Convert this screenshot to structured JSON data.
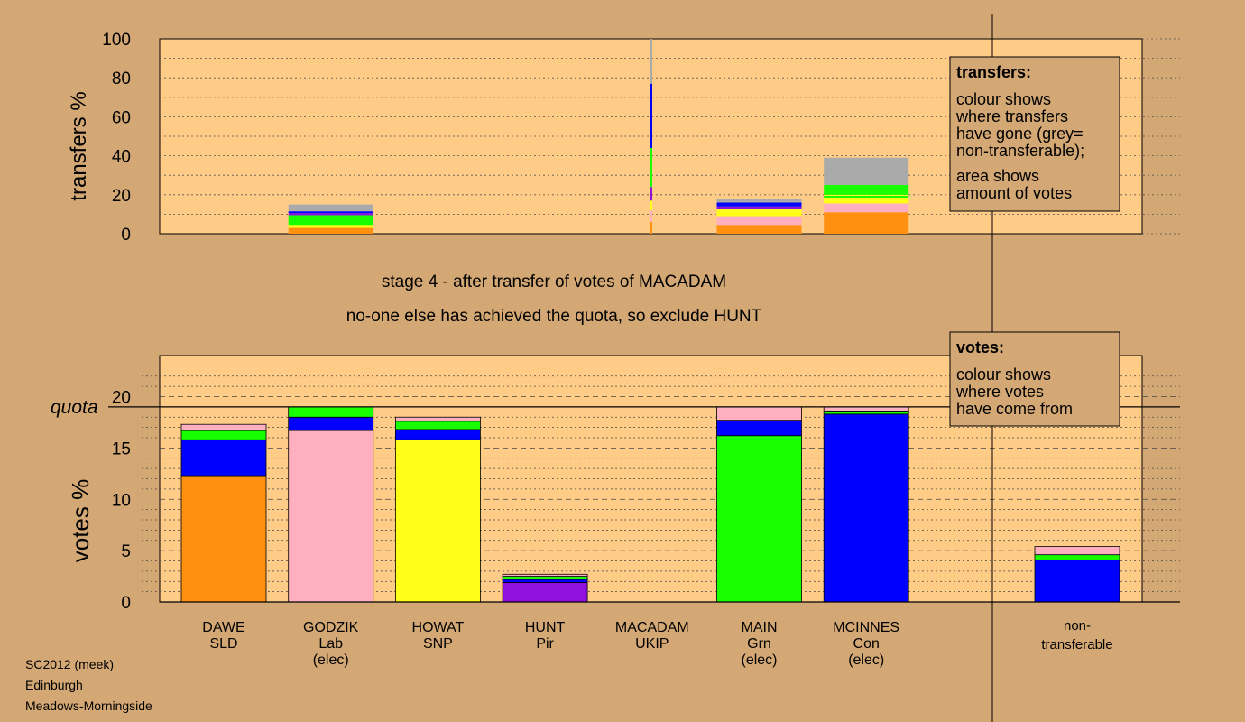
{
  "colors": {
    "background": "#d4a874",
    "panel": "#ffcc88",
    "grey": "#aaaaaa",
    "orange": "#ff9010",
    "pink": "#ffb0c0",
    "yellow": "#ffff18",
    "purple": "#9010e0",
    "green": "#18ff00",
    "blue": "#0000ff"
  },
  "messages": {
    "stage": "stage 4 - after transfer of votes of MACADAM",
    "action": "no-one else has achieved the quota, so exclude HUNT"
  },
  "footer": {
    "line1": "SC2012 (meek)",
    "line2": "Edinburgh",
    "line3": "Meadows-Morningside"
  },
  "legend_transfers": {
    "title": "transfers:",
    "lines": [
      "colour shows",
      "where transfers",
      "have gone (grey=",
      "non-transferable);",
      "area shows",
      "amount of votes"
    ]
  },
  "legend_votes": {
    "title": "votes:",
    "lines": [
      "colour shows",
      "where votes",
      "have come from"
    ]
  },
  "chart_data": [
    {
      "type": "bar",
      "stacked": true,
      "ylabel": "transfers %",
      "ylim": [
        0,
        100
      ],
      "yticks": [
        0,
        20,
        40,
        60,
        80,
        100
      ],
      "bars": [
        {
          "slot": 1,
          "segments": [
            [
              "orange",
              3
            ],
            [
              "yellow",
              1.5
            ],
            [
              "green",
              5
            ],
            [
              "purple",
              1
            ],
            [
              "blue",
              1
            ],
            [
              "grey",
              3.5
            ]
          ]
        },
        {
          "slot": 4.6,
          "thin": true,
          "segments": [
            [
              "orange",
              6
            ],
            [
              "pink",
              6
            ],
            [
              "yellow",
              5
            ],
            [
              "purple",
              7
            ],
            [
              "green",
              20
            ],
            [
              "blue",
              33
            ],
            [
              "grey",
              23
            ]
          ]
        },
        {
          "slot": 5,
          "segments": [
            [
              "orange",
              4.5
            ],
            [
              "pink",
              4.5
            ],
            [
              "yellow",
              3.5
            ],
            [
              "purple",
              1.5
            ],
            [
              "blue",
              2
            ],
            [
              "grey",
              2
            ]
          ]
        },
        {
          "slot": 6,
          "segments": [
            [
              "orange",
              11
            ],
            [
              "pink",
              4.5
            ],
            [
              "yellow",
              3
            ],
            [
              "green",
              1
            ],
            [
              "yellow",
              0.5
            ],
            [
              "green",
              5
            ],
            [
              "grey",
              14
            ]
          ]
        }
      ]
    },
    {
      "type": "bar",
      "stacked": true,
      "ylabel": "votes %",
      "ylim": [
        0,
        24
      ],
      "yticks": [
        0,
        5,
        10,
        15,
        20
      ],
      "quota": 19,
      "quota_label": "quota",
      "candidates": [
        {
          "name": "DAWE",
          "party": "SLD",
          "status": "",
          "segments": [
            [
              "orange",
              12.3
            ],
            [
              "blue",
              3.5
            ],
            [
              "green",
              0.9
            ],
            [
              "pink",
              0.6
            ]
          ]
        },
        {
          "name": "GODZIK",
          "party": "Lab",
          "status": "(elec)",
          "segments": [
            [
              "pink",
              16.7
            ],
            [
              "blue",
              1.3
            ],
            [
              "green",
              1.0
            ]
          ]
        },
        {
          "name": "HOWAT",
          "party": "SNP",
          "status": "",
          "segments": [
            [
              "yellow",
              15.8
            ],
            [
              "blue",
              1.0
            ],
            [
              "green",
              0.8
            ],
            [
              "pink",
              0.4
            ]
          ]
        },
        {
          "name": "HUNT",
          "party": "Pir",
          "status": "",
          "segments": [
            [
              "purple",
              1.9
            ],
            [
              "blue",
              0.3
            ],
            [
              "green",
              0.3
            ],
            [
              "pink",
              0.2
            ]
          ]
        },
        {
          "name": "MACADAM",
          "party": "UKIP",
          "status": "",
          "segments": []
        },
        {
          "name": "MAIN",
          "party": "Grn",
          "status": "(elec)",
          "segments": [
            [
              "green",
              16.2
            ],
            [
              "blue",
              1.5
            ],
            [
              "pink",
              1.3
            ]
          ]
        },
        {
          "name": "MCINNES",
          "party": "Con",
          "status": "(elec)",
          "segments": [
            [
              "blue",
              18.3
            ],
            [
              "green",
              0.3
            ],
            [
              "pink",
              0.4
            ]
          ]
        }
      ],
      "nontransferable": {
        "label1": "non-",
        "label2": "transferable",
        "segments": [
          [
            "blue",
            4.1
          ],
          [
            "green",
            0.5
          ],
          [
            "pink",
            0.8
          ]
        ]
      }
    }
  ]
}
